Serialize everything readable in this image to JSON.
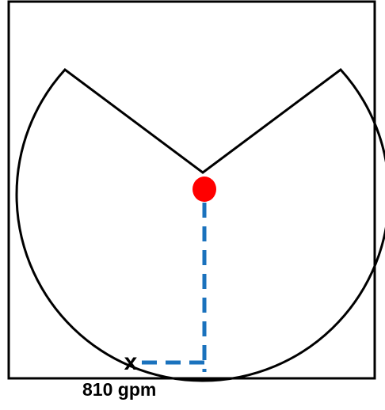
{
  "diagram": {
    "marker_label": "x",
    "caption": "810 gpm",
    "colors": {
      "frame": "#000000",
      "outline": "#000000",
      "source_dot": "#ff0000",
      "dashed_path": "#1a72bd"
    }
  }
}
